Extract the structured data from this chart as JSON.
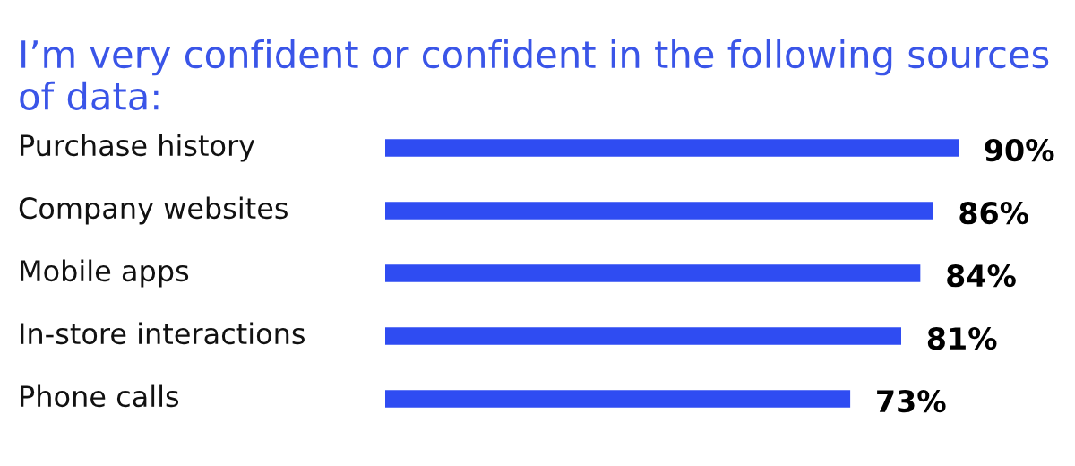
{
  "chart_data": {
    "type": "bar",
    "orientation": "horizontal",
    "title": "I’m very confident or confident in the following sources of data:",
    "categories": [
      "Purchase history",
      "Company websites",
      "Mobile apps",
      "In-store interactions",
      "Phone calls"
    ],
    "values": [
      90,
      86,
      84,
      81,
      73
    ],
    "value_labels": [
      "90%",
      "86%",
      "84%",
      "81%",
      "73%"
    ],
    "color": "#2f4cf2"
  }
}
